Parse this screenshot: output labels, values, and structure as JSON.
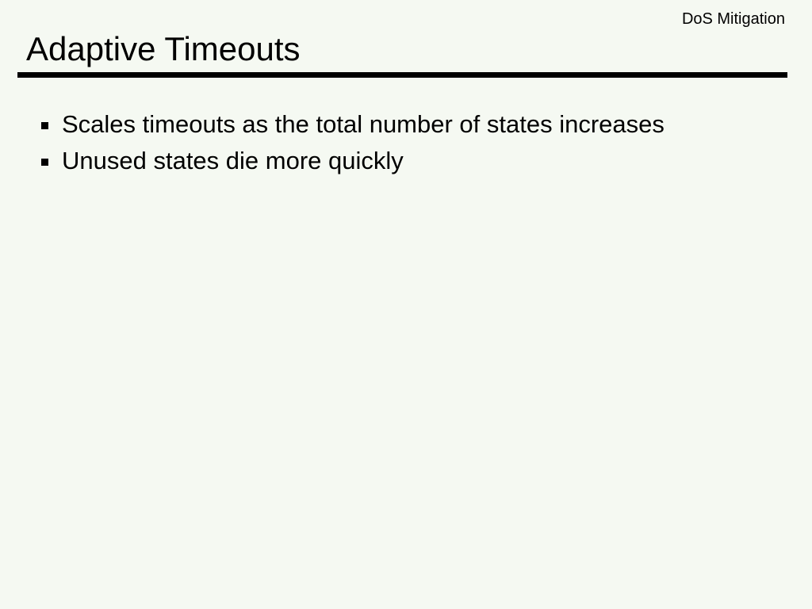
{
  "slide": {
    "header_label": "DoS Mitigation",
    "title": "Adaptive Timeouts",
    "bullets": [
      "Scales timeouts as the total number of states increases",
      "Unused states die more quickly"
    ],
    "colors": {
      "background": "#f5f9f2",
      "text": "#000000",
      "rule": "#000000"
    }
  }
}
